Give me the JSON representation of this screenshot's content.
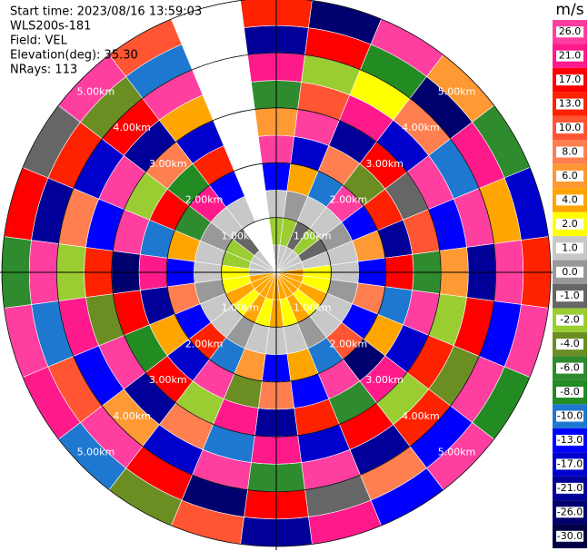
{
  "chart_data": {
    "type": "ppi",
    "info": [
      "Start time: 2023/08/16 13:59:03",
      "WLS200s-181",
      "Field: VEL",
      "Elevation(deg): 35.30",
      "NRays: 113"
    ],
    "colorbar_title": "m/s",
    "colorbar_ticks": [
      {
        "value": -30,
        "label": "-30.0"
      },
      {
        "value": -26,
        "label": "-26.0"
      },
      {
        "value": -21,
        "label": "-21.0"
      },
      {
        "value": -17,
        "label": "-17.0"
      },
      {
        "value": -13,
        "label": "-13.0"
      },
      {
        "value": -10,
        "label": "-10.0"
      },
      {
        "value": -8,
        "label": "-8.0"
      },
      {
        "value": -6,
        "label": "-6.0"
      },
      {
        "value": -4,
        "label": "-4.0"
      },
      {
        "value": -2,
        "label": "-2.0"
      },
      {
        "value": -1,
        "label": "-1.0"
      },
      {
        "value": 0,
        "label": "0.0"
      },
      {
        "value": 1,
        "label": "1.0"
      },
      {
        "value": 2,
        "label": "2.0"
      },
      {
        "value": 4,
        "label": "4.0"
      },
      {
        "value": 6,
        "label": "6.0"
      },
      {
        "value": 8,
        "label": "8.0"
      },
      {
        "value": 10,
        "label": "10.0"
      },
      {
        "value": 13,
        "label": "13.0"
      },
      {
        "value": 17,
        "label": "17.0"
      },
      {
        "value": 21,
        "label": "21.0"
      },
      {
        "value": 26,
        "label": "26.0"
      }
    ],
    "colors": [
      "#000044",
      "#00006e",
      "#000099",
      "#0000cd",
      "#0000ff",
      "#1e78d0",
      "#228b22",
      "#2e8b2e",
      "#6b8e23",
      "#9acd32",
      "#666666",
      "#999999",
      "#c8c8c8",
      "#ffff00",
      "#ffa500",
      "#ff9933",
      "#ff7f50",
      "#ff5533",
      "#ff2200",
      "#ff0000",
      "#ff1a8c",
      "#ff3fa0"
    ],
    "rlim": [
      0,
      5
    ],
    "rings": [
      {
        "value": 1,
        "label": "1.00km"
      },
      {
        "value": 2,
        "label": "2.00km"
      },
      {
        "value": 3,
        "label": "3.00km"
      },
      {
        "value": 4,
        "label": "4.00km"
      },
      {
        "value": 5,
        "label": "5.00km"
      }
    ],
    "azimuths": [
      0,
      15,
      30,
      45,
      60,
      75,
      90,
      105,
      120,
      135,
      150,
      165,
      180,
      195,
      210,
      225,
      240,
      255,
      270,
      285,
      300,
      315,
      330,
      345
    ],
    "ranges": [
      0,
      0.5,
      1,
      1.5,
      2,
      2.5,
      3,
      3.5,
      4,
      4.5,
      5
    ],
    "values": [
      [
        0.5,
        -3,
        0.5,
        -15,
        22,
        5,
        -7,
        18,
        -24,
        12
      ],
      [
        0.5,
        -3,
        -0.5,
        3,
        -18,
        24,
        9,
        -3,
        15,
        -28
      ],
      [
        0.5,
        -1.5,
        0.5,
        -11,
        7,
        -22,
        19,
        1.5,
        -9,
        23
      ],
      [
        0.5,
        -3,
        0.5,
        24,
        -5,
        14,
        -19,
        7,
        -27,
        4
      ],
      [
        0.5,
        -1.5,
        -0.5,
        -15,
        11,
        -2,
        23,
        -12,
        18,
        -7
      ],
      [
        0.5,
        0.5,
        0.5,
        5,
        -23,
        9,
        -14,
        27,
        3,
        -19
      ],
      [
        3,
        1.5,
        0.5,
        -15,
        16,
        -8,
        5,
        -25,
        21,
        11
      ],
      [
        3,
        1.5,
        -0.5,
        7,
        -12,
        23,
        -4,
        15,
        -17,
        25
      ],
      [
        3,
        3,
        0.5,
        -15,
        3,
        -19,
        12,
        -6,
        24,
        -10
      ],
      [
        3,
        1.5,
        0.5,
        9,
        -27,
        18,
        -3,
        11,
        -14,
        28
      ],
      [
        3,
        3,
        -0.5,
        -11,
        21,
        -7,
        15,
        -23,
        6,
        -16
      ],
      [
        3,
        1.5,
        0.5,
        3,
        -15,
        11,
        -20,
        24,
        -2,
        19
      ],
      [
        3,
        3,
        0.5,
        -15,
        7,
        -25,
        18,
        -8,
        13,
        -22
      ],
      [
        3,
        1.5,
        0.5,
        5,
        -5,
        19,
        -12,
        22,
        -28,
        9
      ],
      [
        3,
        3,
        -0.5,
        -11,
        25,
        -3,
        7,
        -18,
        14,
        -6
      ],
      [
        3,
        1.5,
        0.5,
        12,
        -19,
        16,
        -24,
        5,
        21,
        -13
      ],
      [
        3,
        3,
        0.5,
        -15,
        3,
        -9,
        27,
        -15,
        8,
        17
      ],
      [
        3,
        1.5,
        -0.5,
        7,
        -22,
        13,
        -5,
        19,
        -11,
        24
      ],
      [
        0.5,
        1.5,
        0.5,
        -15,
        18,
        -27,
        10,
        -3,
        23,
        -8
      ],
      [
        0.5,
        -3,
        0.5,
        3,
        -11,
        22,
        -16,
        7,
        -25,
        15
      ],
      [
        0.5,
        -3,
        -0.5,
        -7,
        15,
        -4,
        25,
        -20,
        11,
        -1.5
      ],
      [
        0.5,
        -1.5,
        0.5,
        20,
        -9,
        6,
        -22,
        16,
        -5,
        27
      ],
      [
        null,
        null,
        0.5,
        -15,
        12,
        -18,
        3,
        24,
        -12,
        9
      ],
      [
        null,
        null,
        null,
        null,
        null,
        null,
        null,
        null,
        null,
        null
      ]
    ]
  }
}
